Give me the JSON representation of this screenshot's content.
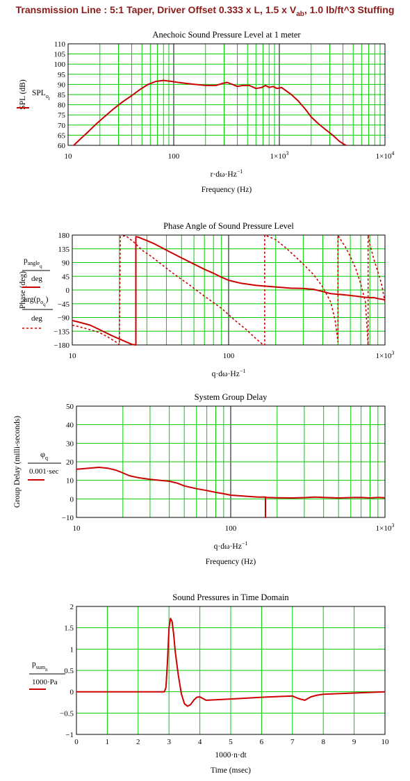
{
  "page": {
    "title_pre": "Transmission Line : 5:1 Taper, Driver Offset 0.333 x L, 1.5 x V",
    "title_sub": "ab",
    "title_post": ", 1.0 lb/ft^3 Stuffing"
  },
  "colors": {
    "grid": "#00cc00",
    "curve": "#cc0000",
    "frame": "#000000",
    "emph": "#000000"
  },
  "chart_data": [
    {
      "type": "line",
      "title": "Anechoic Sound Pressure Level at 1 meter",
      "ylabel": "SPL (dB)",
      "legend_main": "SPL",
      "legend_sub": "o",
      "legend_sub2": "r",
      "xexpr": "r·dω·Hz",
      "xexpr_exp": "−1",
      "xlabel": "Frequency (Hz)",
      "xscale": "log",
      "xlim": [
        10,
        10000
      ],
      "ylim": [
        60,
        110
      ],
      "xticks": [
        "10",
        "100",
        "1×10",
        "1×10"
      ],
      "xtick_exp": [
        "",
        "",
        "3",
        "4"
      ],
      "yticks": [
        "60",
        "65",
        "70",
        "75",
        "80",
        "85",
        "90",
        "95",
        "100",
        "105",
        "110"
      ],
      "series": [
        {
          "style": "solid",
          "x": [
            11.3,
            13,
            15,
            18,
            22,
            27,
            33,
            40,
            48,
            57,
            68,
            80,
            95,
            110,
            130,
            160,
            200,
            250,
            290,
            320,
            360,
            400,
            450,
            520,
            600,
            680,
            740,
            800,
            870,
            950,
            1050,
            1150,
            1300,
            1500,
            1750,
            2000,
            2300,
            2700,
            3200,
            3700,
            4100,
            4300
          ],
          "y": [
            60,
            63,
            66,
            70,
            74,
            78,
            81.5,
            84.5,
            87.5,
            90,
            91.5,
            92,
            91.5,
            91,
            90.5,
            90,
            89.5,
            89.5,
            90.5,
            91,
            90,
            89,
            89.5,
            89.5,
            88,
            88.5,
            89.5,
            88.5,
            89,
            88,
            88.5,
            87,
            85,
            82,
            78,
            74,
            71,
            68,
            65,
            62,
            60.5,
            60
          ]
        }
      ]
    },
    {
      "type": "line",
      "title": "Phase Angle of Sound Pressure Level",
      "ylabel": "Phase (deg)",
      "legend1_main": "p",
      "legend1_sub": "angle",
      "legend1_sub2": "q",
      "legend1_den": "deg",
      "legend2_main": "arg",
      "legend2_inner": "p",
      "legend2_sub": "o",
      "legend2_sub2": "q",
      "legend2_den": "deg",
      "xexpr": "q·dω·Hz",
      "xexpr_exp": "−1",
      "xscale": "log",
      "xlim": [
        10,
        1000
      ],
      "ylim": [
        -180,
        180
      ],
      "xticks": [
        "10",
        "100",
        "1×10"
      ],
      "xtick_exp": [
        "",
        "",
        "3"
      ],
      "yticks": [
        "−180",
        "−135",
        "−90",
        "−45",
        "0",
        "45",
        "90",
        "135",
        "180"
      ],
      "series": [
        {
          "style": "solid",
          "x": [
            10,
            11,
            13,
            15,
            18,
            21,
            24,
            25.5,
            25.5,
            26.5,
            28,
            30,
            33,
            37,
            42,
            50,
            60,
            70,
            80,
            90,
            100,
            120,
            150,
            200,
            250,
            300,
            350,
            400,
            450,
            500,
            550,
            600,
            650,
            700,
            750,
            800,
            850,
            900,
            950,
            1000
          ],
          "y": [
            -100,
            -105,
            -115,
            -130,
            -150,
            -165,
            -178,
            -180,
            175,
            173,
            168,
            162,
            153,
            140,
            125,
            105,
            85,
            68,
            55,
            42,
            32,
            22,
            15,
            10,
            6,
            5,
            2,
            -5,
            -12,
            -14,
            -16,
            -18,
            -20,
            -22,
            -24,
            -25,
            -25,
            -28,
            -30,
            -32
          ]
        },
        {
          "style": "dotted",
          "x": [
            10,
            11,
            12,
            13,
            15,
            17,
            19,
            20,
            20.3,
            22,
            25,
            28,
            32,
            37,
            44,
            55,
            70,
            90,
            110,
            130,
            150,
            165,
            170,
            170,
            180,
            200,
            230,
            260,
            300,
            350,
            400,
            450,
            480,
            500,
            500,
            520,
            560,
            600,
            650,
            700,
            750,
            780,
            780,
            800,
            850,
            900,
            950,
            1000
          ],
          "y": [
            -115,
            -120,
            -125,
            -130,
            -140,
            -155,
            -170,
            -180,
            175,
            178,
            155,
            130,
            110,
            85,
            55,
            20,
            -20,
            -60,
            -100,
            -130,
            -160,
            -178,
            -180,
            180,
            175,
            165,
            140,
            115,
            85,
            50,
            10,
            -40,
            -100,
            -170,
            180,
            165,
            140,
            110,
            70,
            20,
            -40,
            -180,
            180,
            150,
            100,
            60,
            20,
            -40
          ]
        }
      ]
    },
    {
      "type": "line",
      "title": "System Group Delay",
      "ylabel": "Group Delay (milli-seconds)",
      "legend_main": "φ",
      "legend_sub": "q",
      "legend_den": "0.001·sec",
      "xexpr": "q·dω·Hz",
      "xexpr_exp": "−1",
      "xlabel": "Frequency (Hz)",
      "xscale": "log",
      "xlim": [
        10,
        1000
      ],
      "ylim": [
        -10,
        50
      ],
      "xticks": [
        "10",
        "100",
        "1×10"
      ],
      "xtick_exp": [
        "",
        "",
        "3"
      ],
      "yticks": [
        "−10",
        "0",
        "10",
        "20",
        "30",
        "40",
        "50"
      ],
      "series": [
        {
          "style": "solid",
          "x": [
            10,
            12,
            14,
            16,
            18,
            20,
            22,
            25,
            30,
            35,
            40,
            45,
            50,
            60,
            70,
            80,
            90,
            100,
            120,
            150,
            168,
            168,
            168,
            170,
            200,
            250,
            300,
            350,
            400,
            500,
            600,
            700,
            800,
            900,
            1000
          ],
          "y": [
            16,
            16.5,
            17,
            16.5,
            15.5,
            14,
            12.5,
            11.5,
            10.5,
            10,
            9.5,
            8.5,
            7,
            5.5,
            4.5,
            3.5,
            2.8,
            2,
            1.5,
            1,
            1,
            -10,
            1,
            0.8,
            0.6,
            0.5,
            0.7,
            1,
            0.8,
            0.5,
            0.7,
            0.8,
            0.5,
            0.8,
            0.6
          ]
        }
      ]
    },
    {
      "type": "line",
      "title": "Sound Pressures in Time Domain",
      "legend_main": "p",
      "legend_sub": "sum",
      "legend_sub2": "n",
      "legend_den": "1000·Pa",
      "xexpr": "1000·n·dt",
      "xlabel": "Time (msec)",
      "xscale": "linear",
      "xlim": [
        0,
        10
      ],
      "ylim": [
        -1,
        2
      ],
      "xticks": [
        "0",
        "1",
        "2",
        "3",
        "4",
        "5",
        "6",
        "7",
        "8",
        "9",
        "10"
      ],
      "yticks": [
        "−1",
        "−0.5",
        "0",
        "0.5",
        "1",
        "1.5",
        "2"
      ],
      "series": [
        {
          "style": "solid",
          "x": [
            0,
            1,
            2,
            2.85,
            2.9,
            2.95,
            3.0,
            3.05,
            3.1,
            3.15,
            3.2,
            3.3,
            3.4,
            3.5,
            3.6,
            3.7,
            3.8,
            3.9,
            4.0,
            4.2,
            4.5,
            5,
            6,
            7,
            7.2,
            7.4,
            7.6,
            7.8,
            8,
            9,
            10
          ],
          "y": [
            0,
            0,
            0,
            0,
            0.1,
            0.7,
            1.5,
            1.72,
            1.65,
            1.35,
            0.95,
            0.4,
            -0.05,
            -0.28,
            -0.34,
            -0.3,
            -0.2,
            -0.13,
            -0.12,
            -0.2,
            -0.19,
            -0.17,
            -0.13,
            -0.1,
            -0.16,
            -0.2,
            -0.12,
            -0.08,
            -0.06,
            -0.03,
            0
          ]
        }
      ]
    }
  ]
}
